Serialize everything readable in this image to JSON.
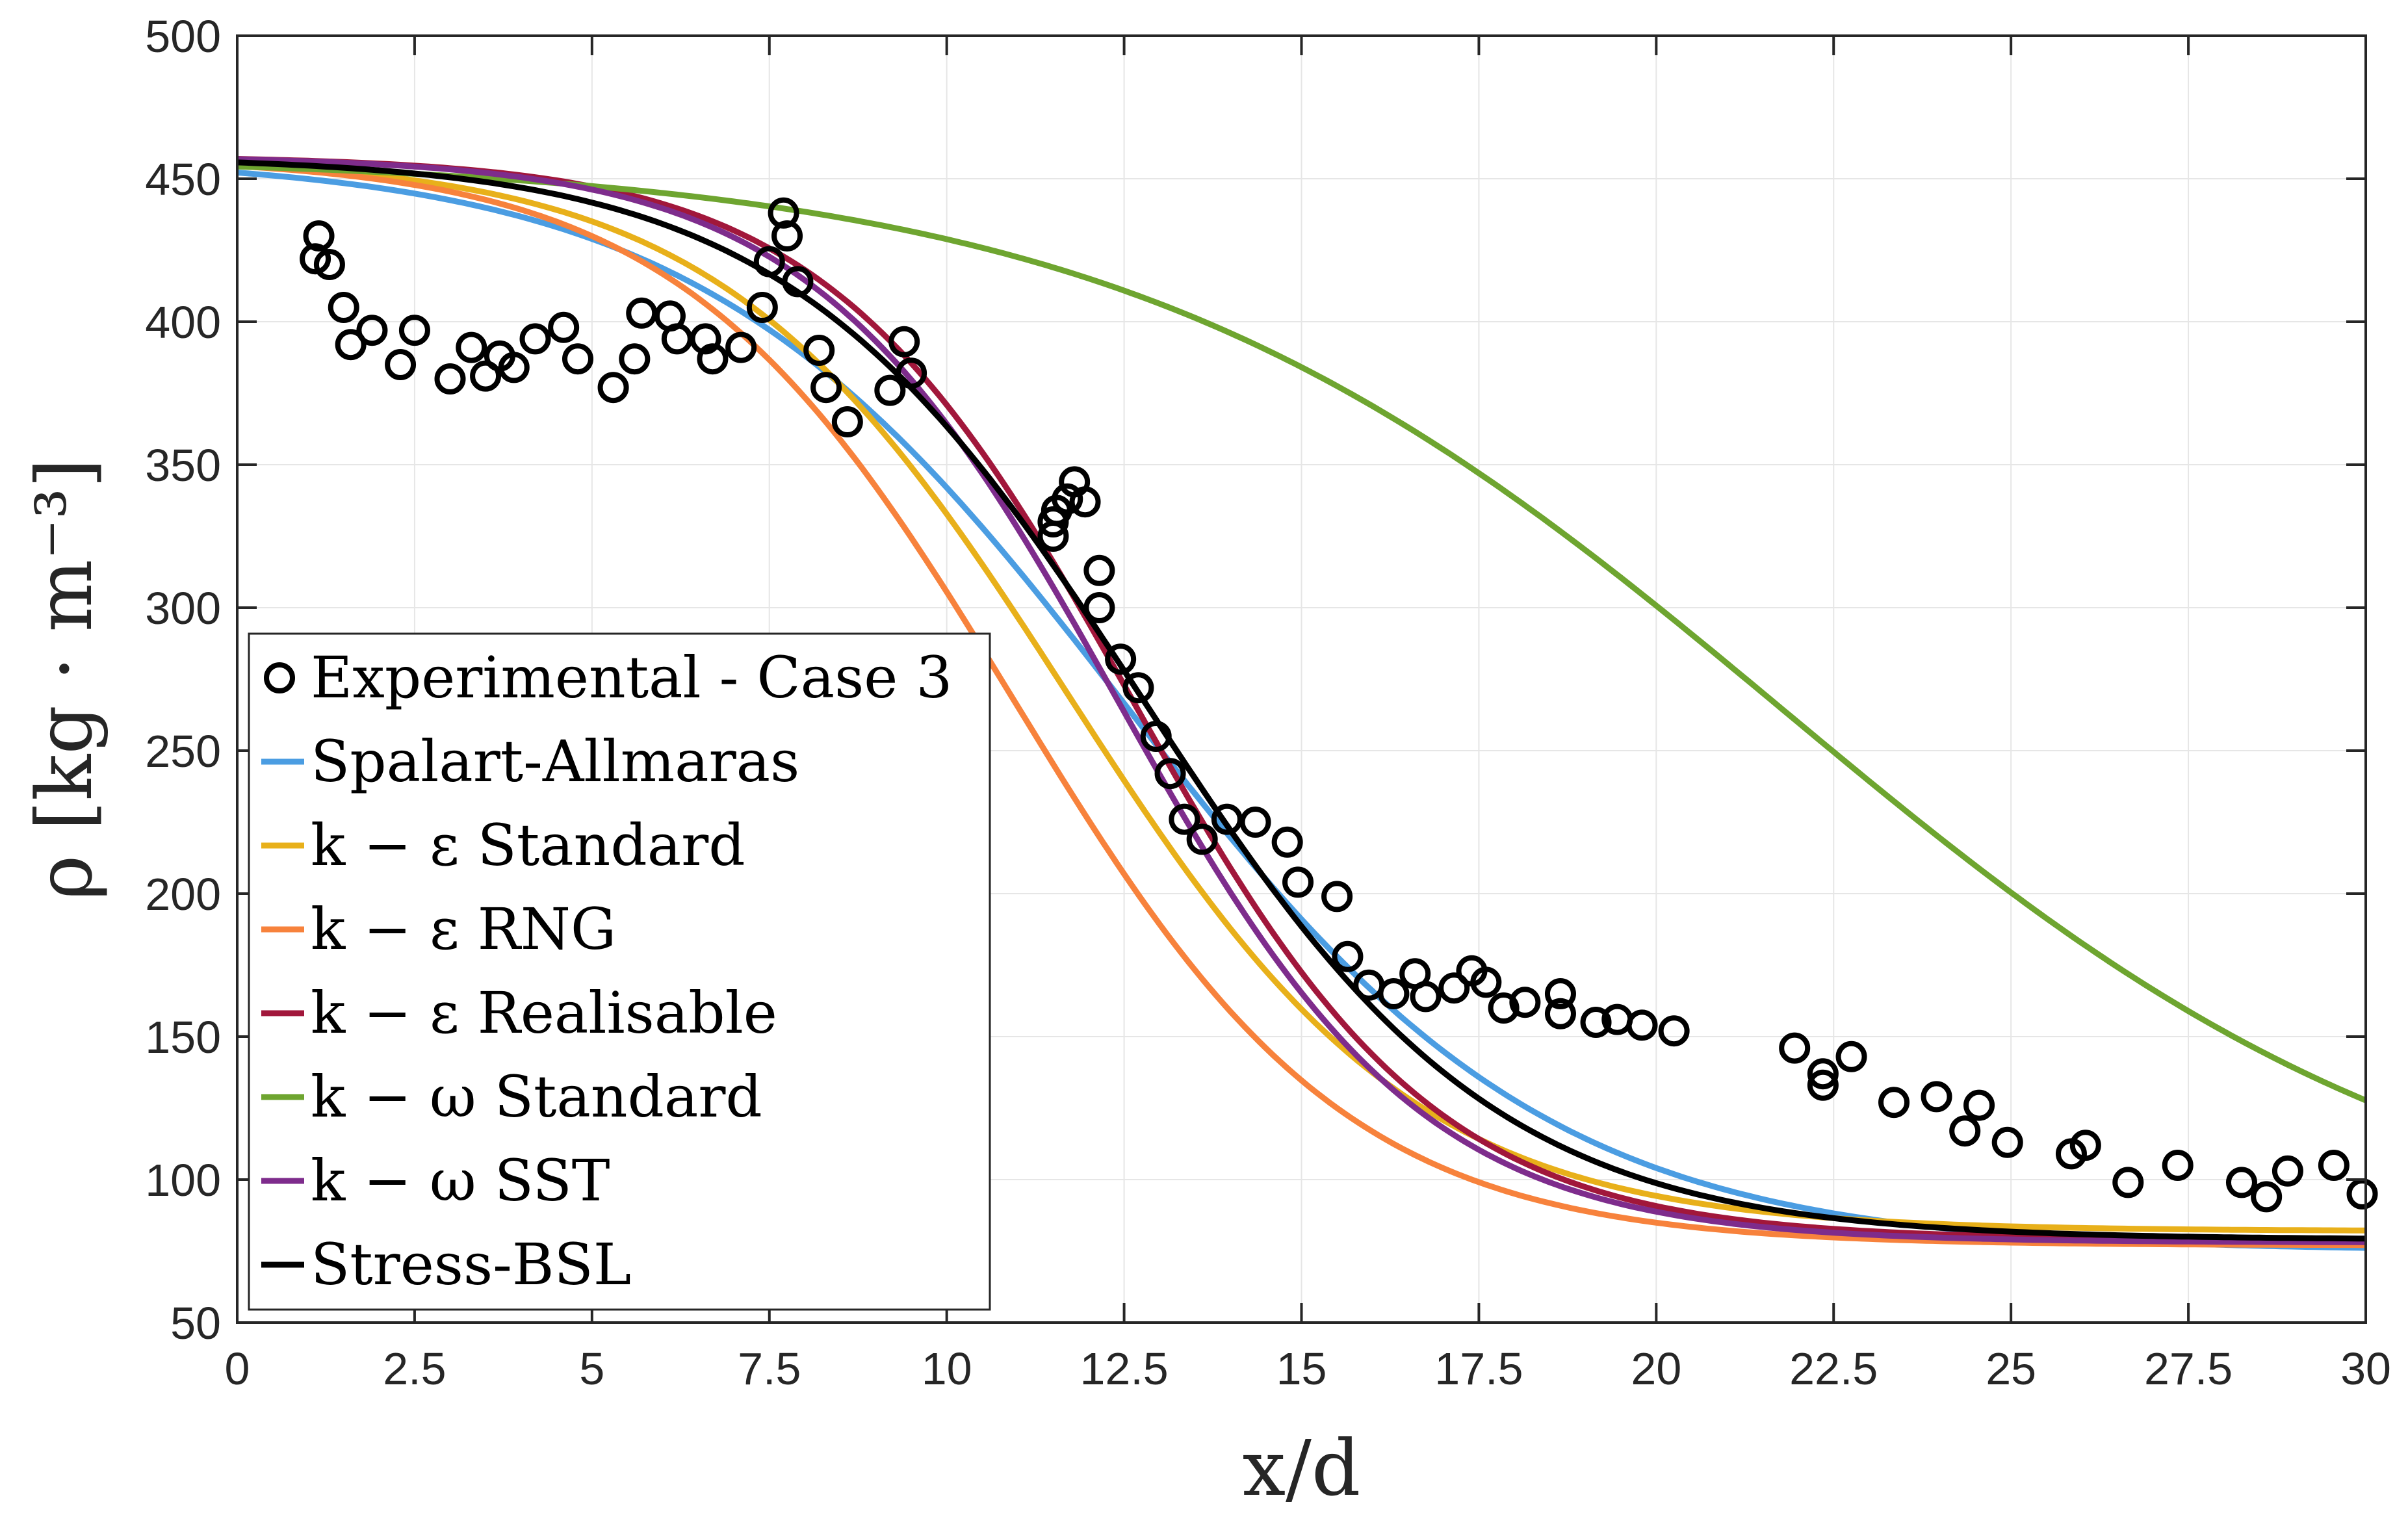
{
  "chart_data": {
    "type": "line",
    "title": "",
    "xlabel": "x/d",
    "ylabel": "ρ  [kg · m⁻³]",
    "xlim": [
      0,
      30
    ],
    "ylim": [
      50,
      500
    ],
    "xticks": [
      0,
      2.5,
      5,
      7.5,
      10,
      12.5,
      15,
      17.5,
      20,
      22.5,
      25,
      27.5,
      30
    ],
    "xtick_labels": [
      "0",
      "2.5",
      "5",
      "7.5",
      "10",
      "12.5",
      "15",
      "17.5",
      "20",
      "22.5",
      "25",
      "27.5",
      "30"
    ],
    "yticks": [
      50,
      100,
      150,
      200,
      250,
      300,
      350,
      400,
      450,
      500
    ],
    "ytick_labels": [
      "50",
      "100",
      "150",
      "200",
      "250",
      "300",
      "350",
      "400",
      "450",
      "500"
    ],
    "grid": true,
    "legend_position": "lower-left",
    "series": [
      {
        "name": "Experimental - Case 3",
        "marker": "circle",
        "color": "#000000",
        "points": [
          [
            1.15,
            430
          ],
          [
            1.1,
            422
          ],
          [
            1.3,
            420
          ],
          [
            1.5,
            405
          ],
          [
            1.6,
            392
          ],
          [
            1.9,
            397
          ],
          [
            2.3,
            385
          ],
          [
            2.5,
            397
          ],
          [
            3.0,
            380
          ],
          [
            3.3,
            391
          ],
          [
            3.5,
            381
          ],
          [
            3.7,
            388
          ],
          [
            3.9,
            384
          ],
          [
            4.2,
            394
          ],
          [
            4.6,
            398
          ],
          [
            4.8,
            387
          ],
          [
            5.3,
            377
          ],
          [
            5.6,
            387
          ],
          [
            5.7,
            403
          ],
          [
            6.1,
            402
          ],
          [
            6.2,
            394
          ],
          [
            6.6,
            394
          ],
          [
            6.7,
            387
          ],
          [
            7.1,
            391
          ],
          [
            7.4,
            405
          ],
          [
            7.5,
            421
          ],
          [
            7.7,
            438
          ],
          [
            7.75,
            430
          ],
          [
            7.9,
            414
          ],
          [
            8.2,
            390
          ],
          [
            8.3,
            377
          ],
          [
            8.6,
            365
          ],
          [
            9.2,
            376
          ],
          [
            9.4,
            393
          ],
          [
            9.5,
            382
          ],
          [
            11.5,
            325
          ],
          [
            11.5,
            330
          ],
          [
            11.55,
            334
          ],
          [
            11.7,
            338
          ],
          [
            11.8,
            344
          ],
          [
            11.95,
            337
          ],
          [
            12.15,
            313
          ],
          [
            12.15,
            300
          ],
          [
            12.45,
            282
          ],
          [
            12.7,
            272
          ],
          [
            12.95,
            255
          ],
          [
            13.15,
            242
          ],
          [
            13.35,
            226
          ],
          [
            13.6,
            219
          ],
          [
            13.95,
            226
          ],
          [
            14.35,
            225
          ],
          [
            14.8,
            218
          ],
          [
            14.95,
            204
          ],
          [
            15.5,
            199
          ],
          [
            15.65,
            178
          ],
          [
            15.95,
            168
          ],
          [
            16.3,
            165
          ],
          [
            16.6,
            172
          ],
          [
            16.75,
            164
          ],
          [
            17.15,
            167
          ],
          [
            17.4,
            173
          ],
          [
            17.6,
            169
          ],
          [
            17.85,
            160
          ],
          [
            18.15,
            162
          ],
          [
            18.65,
            165
          ],
          [
            18.65,
            158
          ],
          [
            19.15,
            155
          ],
          [
            19.45,
            156
          ],
          [
            19.8,
            154
          ],
          [
            20.25,
            152
          ],
          [
            21.95,
            146
          ],
          [
            22.35,
            137
          ],
          [
            22.35,
            133
          ],
          [
            22.75,
            143
          ],
          [
            23.35,
            127
          ],
          [
            23.95,
            129
          ],
          [
            24.35,
            117
          ],
          [
            24.55,
            126
          ],
          [
            24.95,
            113
          ],
          [
            25.85,
            109
          ],
          [
            26.05,
            112
          ],
          [
            26.65,
            99
          ],
          [
            27.35,
            105
          ],
          [
            28.25,
            99
          ],
          [
            28.6,
            94
          ],
          [
            28.9,
            103
          ],
          [
            29.55,
            105
          ],
          [
            29.95,
            95
          ]
        ]
      },
      {
        "name": "Spalart-Allmaras",
        "color": "#4b9de2",
        "x0": 12.5,
        "w": 3.0,
        "ymin": 75,
        "ymax": 458
      },
      {
        "name": "k − ε Standard",
        "color": "#e8b01a",
        "x0": 11.7,
        "w": 2.45,
        "ymin": 82,
        "ymax": 458
      },
      {
        "name": "k − ε RNG",
        "color": "#f7823c",
        "x0": 10.95,
        "w": 2.35,
        "ymin": 77,
        "ymax": 458
      },
      {
        "name": "k − ε Realisable",
        "color": "#a1173b",
        "x0": 12.6,
        "w": 2.15,
        "ymin": 79,
        "ymax": 458
      },
      {
        "name": "k − ω Standard",
        "color": "#6ea530",
        "x0": 21.8,
        "w": 4.7,
        "ymin": 70,
        "ymax": 458
      },
      {
        "name": "k − ω SST",
        "color": "#7e2c8c",
        "x0": 12.4,
        "w": 2.15,
        "ymin": 78,
        "ymax": 458
      },
      {
        "name": "Stress-BSL",
        "color": "#000000",
        "x0": 12.75,
        "w": 2.5,
        "ymin": 79,
        "ymax": 458
      }
    ]
  },
  "legend": {
    "items": [
      {
        "label": "Experimental - Case 3",
        "color": "#000000",
        "symbol": "circle"
      },
      {
        "label": "Spalart-Allmaras",
        "color": "#4b9de2",
        "symbol": "line"
      },
      {
        "label": "k − ε Standard",
        "color": "#e8b01a",
        "symbol": "line"
      },
      {
        "label": "k − ε RNG",
        "color": "#f7823c",
        "symbol": "line"
      },
      {
        "label": "k − ε Realisable",
        "color": "#a1173b",
        "symbol": "line"
      },
      {
        "label": "k − ω Standard",
        "color": "#6ea530",
        "symbol": "line"
      },
      {
        "label": "k − ω SST",
        "color": "#7e2c8c",
        "symbol": "line"
      },
      {
        "label": "Stress-BSL",
        "color": "#000000",
        "symbol": "line"
      }
    ]
  }
}
